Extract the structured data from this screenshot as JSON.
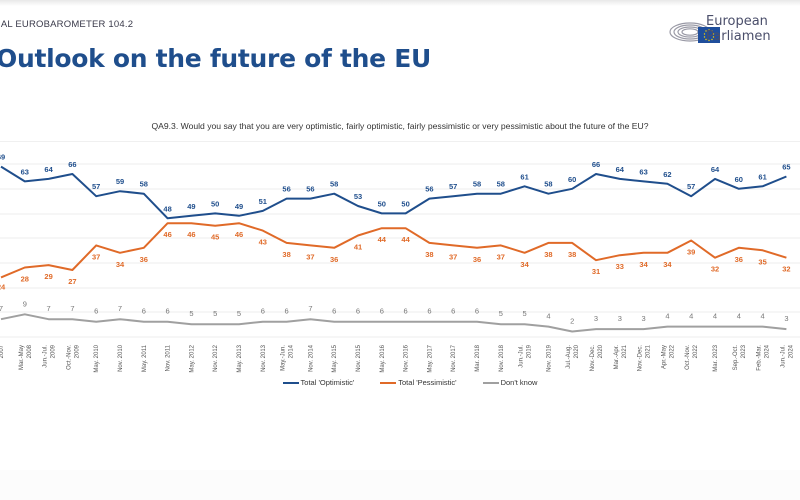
{
  "header": {
    "survey_label": "IAL EUROBAROMETER 104.2",
    "title": "Outlook on the future of the EU",
    "logo_line1": "European",
    "logo_line2": "Parliamen"
  },
  "question": "QA9.3. Would you say that you are very optimistic, fairly optimistic, fairly pessimistic or very pessimistic about the future of the EU?",
  "colors": {
    "optimistic": "#1f4e8c",
    "pessimistic": "#e06a28",
    "dont_know": "#a0a0a0",
    "title": "#1f4e8c"
  },
  "chart_data": {
    "type": "line",
    "title": "Outlook on the future of the EU",
    "xlabel": "",
    "ylabel": "",
    "grid": true,
    "legend_position": "bottom",
    "ylim": [
      0,
      75
    ],
    "categories": [
      "2007",
      "Mar.-May 2008",
      "Jun.-Jul. 2009",
      "Oct.-Nov. 2009",
      "May. 2010",
      "Nov. 2010",
      "May. 2011",
      "Nov. 2011",
      "May. 2012",
      "Nov. 2012",
      "May. 2013",
      "Nov. 2013",
      "May.-Jun. 2014",
      "Nov. 2014",
      "May. 2015",
      "Nov. 2015",
      "May. 2016",
      "Nov. 2016",
      "May. 2017",
      "Nov. 2017",
      "Mar. 2018",
      "Nov. 2018",
      "Jun.-Jul. 2019",
      "Nov. 2019",
      "Jul.-Aug. 2020",
      "Nov.-Dec. 2020",
      "Mar.-Apr. 2021",
      "Nov.-Dec. 2021",
      "Apr.-May 2022",
      "Oct.-Nov. 2022",
      "Mar. 2023",
      "Sep.-Oct. 2023",
      "Feb.-Mar. 2024",
      "Jun.-Jul. 2024"
    ],
    "series": [
      {
        "name": "Total 'Optimistic'",
        "values": [
          69,
          63,
          64,
          66,
          57,
          59,
          58,
          48,
          49,
          50,
          49,
          51,
          56,
          56,
          58,
          53,
          50,
          50,
          56,
          57,
          58,
          58,
          61,
          58,
          60,
          66,
          64,
          63,
          62,
          57,
          64,
          60,
          61,
          65
        ]
      },
      {
        "name": "Total 'Pessimistic'",
        "values": [
          24,
          28,
          29,
          27,
          37,
          34,
          36,
          46,
          46,
          45,
          46,
          43,
          38,
          37,
          36,
          41,
          44,
          44,
          38,
          37,
          36,
          37,
          34,
          38,
          38,
          31,
          33,
          34,
          34,
          39,
          32,
          36,
          35,
          32
        ]
      },
      {
        "name": "Don't know",
        "values": [
          7,
          9,
          7,
          7,
          6,
          7,
          6,
          6,
          5,
          5,
          5,
          6,
          6,
          7,
          6,
          6,
          6,
          6,
          6,
          6,
          6,
          5,
          5,
          4,
          2,
          3,
          3,
          3,
          4,
          4,
          4,
          4,
          4,
          3
        ]
      }
    ],
    "labels_visible": {
      "first_point_labels_cut_off": true
    }
  },
  "legend": [
    {
      "label": "Total 'Optimistic'",
      "color": "#1f4e8c"
    },
    {
      "label": "Total 'Pessimistic'",
      "color": "#e06a28"
    },
    {
      "label": "Don't know",
      "color": "#a0a0a0"
    }
  ]
}
